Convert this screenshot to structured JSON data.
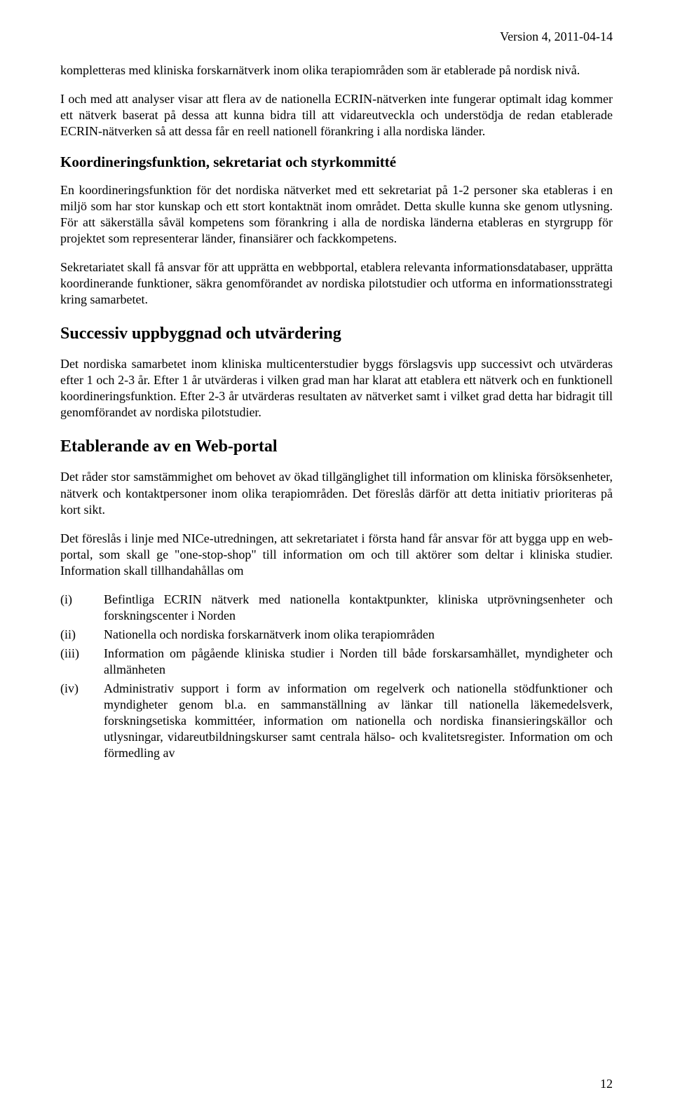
{
  "header": {
    "version": "Version 4, 2011-04-14"
  },
  "paragraphs": {
    "p1": "kompletteras med kliniska forskarnätverk inom olika terapiområden som är etablerade på nordisk nivå.",
    "p2": "I och med att analyser visar att flera av de nationella ECRIN-nätverken inte fungerar optimalt idag kommer ett nätverk baserat på dessa att kunna bidra till att vidareutveckla och understödja de redan etablerade ECRIN-nätverken så att dessa får en reell nationell förankring i alla nordiska länder.",
    "p3": "En koordineringsfunktion för det nordiska nätverket med ett sekretariat på 1-2 personer ska etableras i en miljö som har stor kunskap och ett stort kontaktnät inom området. Detta skulle kunna ske genom utlysning. För att säkerställa såväl kompetens som förankring i alla de nordiska länderna etableras en styrgrupp för projektet som representerar länder, finansiärer och fackkompetens.",
    "p4": "Sekretariatet skall få ansvar för att upprätta en webbportal, etablera relevanta informationsdatabaser, upprätta koordinerande funktioner, säkra genomförandet av nordiska pilotstudier och utforma en informationsstrategi kring samarbetet.",
    "p5": "Det nordiska samarbetet inom kliniska multicenterstudier byggs förslagsvis upp successivt och utvärderas efter 1 och 2-3 år. Efter 1 år utvärderas i vilken grad man har klarat att etablera ett nätverk och en funktionell koordineringsfunktion. Efter 2-3 år utvärderas resultaten av nätverket samt i vilket grad detta har bidragit till genomförandet av nordiska pilotstudier.",
    "p6": "Det råder stor samstämmighet om behovet av ökad tillgänglighet till information om kliniska försöksenheter, nätverk och kontaktpersoner inom olika terapiområden. Det föreslås därför att detta initiativ prioriteras på kort sikt.",
    "p7": "Det föreslås i linje med NICe-utredningen, att sekretariatet i första hand får ansvar för att bygga upp en web-portal, som skall ge \"one-stop-shop\" till information om och till aktörer som deltar i kliniska studier. Information skall tillhandahållas om"
  },
  "headings": {
    "h1": "Koordineringsfunktion, sekretariat och styrkommitté",
    "h2": "Successiv uppbyggnad och utvärdering",
    "h3": "Etablerande av en Web-portal"
  },
  "list": {
    "items": [
      {
        "marker": "(i)",
        "text": "Befintliga ECRIN nätverk med nationella kontaktpunkter, kliniska utprövningsenheter och forskningscenter i Norden"
      },
      {
        "marker": "(ii)",
        "text": "Nationella och nordiska forskarnätverk inom olika terapiområden"
      },
      {
        "marker": "(iii)",
        "text": "Information om pågående kliniska studier i Norden till både forskarsamhället, myndigheter och allmänheten"
      },
      {
        "marker": "(iv)",
        "text": "Administrativ support i form av information om regelverk och nationella stödfunktioner och myndigheter genom bl.a. en sammanställning av länkar till nationella läkemedelsverk, forskningsetiska kommittéer, information om nationella och nordiska finansieringskällor och utlysningar, vidareutbildningskurser samt centrala hälso- och kvalitetsregister. Information om och förmedling av"
      }
    ]
  },
  "pageNumber": "12"
}
